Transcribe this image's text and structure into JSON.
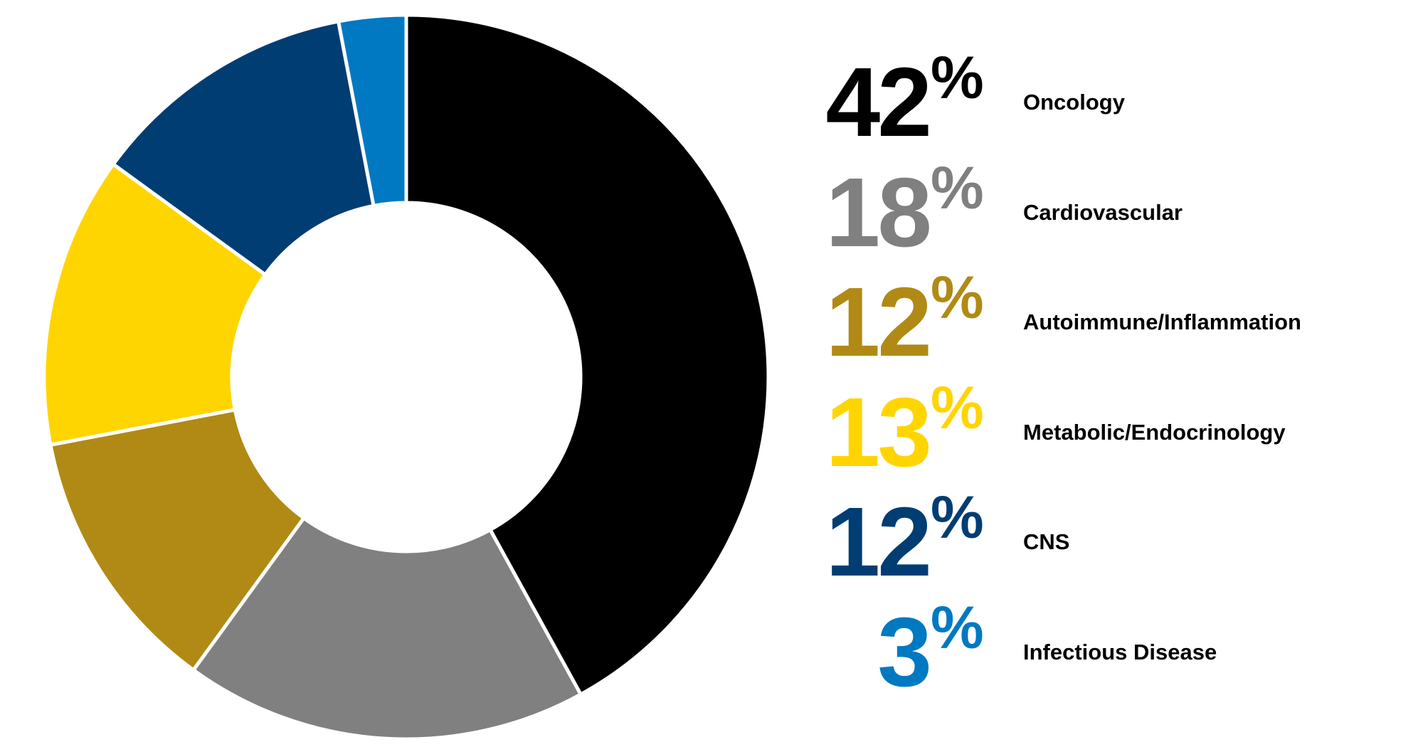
{
  "chart_data": {
    "type": "pie",
    "variant": "donut",
    "categories": [
      "Oncology",
      "Cardiovascular",
      "Autoimmune/Inflammation",
      "Metabolic/Endocrinology",
      "CNS",
      "Infectious Disease"
    ],
    "values": [
      42,
      18,
      12,
      13,
      12,
      3
    ],
    "value_labels": [
      "42",
      "18",
      "12",
      "13",
      "12",
      "3"
    ],
    "unit": "%",
    "colors": [
      "#000000",
      "#808080",
      "#b08a15",
      "#ffd500",
      "#003d73",
      "#0079c2"
    ],
    "start_angle": "top, clockwise",
    "legend_placement": "right"
  }
}
